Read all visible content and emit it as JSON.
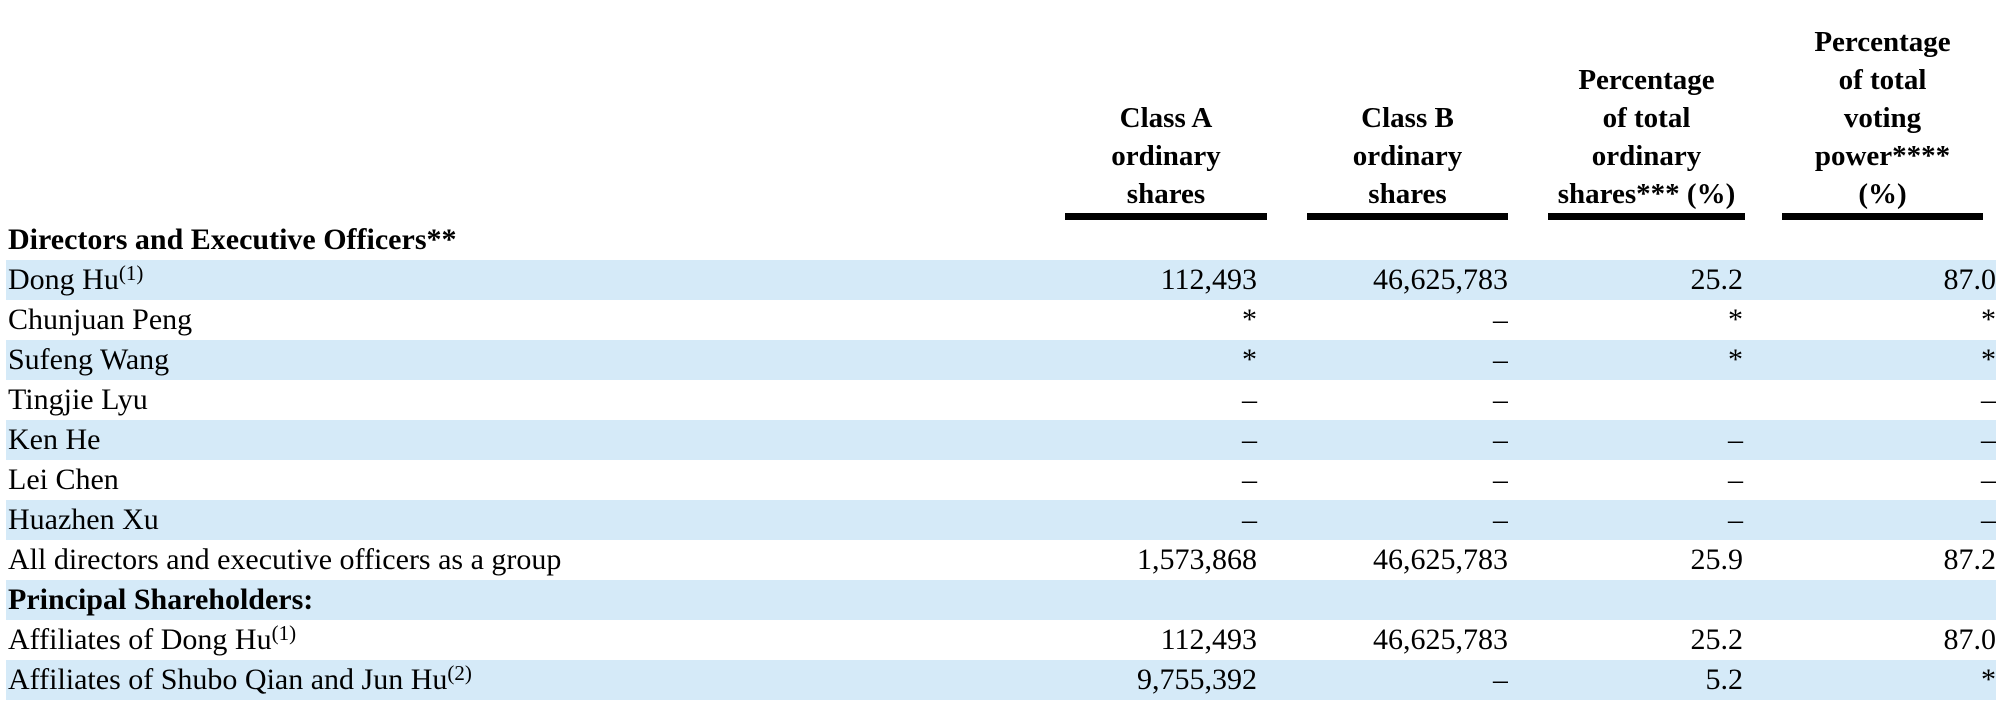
{
  "table": {
    "highlight_color": "#d5eaf8",
    "rule_color": "#000000",
    "header": {
      "name_column_label": "",
      "columns": [
        {
          "lines": [
            "Class A",
            "ordinary",
            "shares"
          ]
        },
        {
          "lines": [
            "Class B",
            "ordinary",
            "shares"
          ]
        },
        {
          "lines": [
            "Percentage",
            "of total",
            "ordinary",
            "shares*** (%)"
          ]
        },
        {
          "lines": [
            "Percentage",
            "of total",
            "voting",
            "power****",
            "(%)"
          ]
        }
      ]
    },
    "rows": [
      {
        "type": "section",
        "label": "Directors and Executive Officers**",
        "footnote": "",
        "values": [
          "",
          "",
          "",
          ""
        ],
        "highlight": false
      },
      {
        "type": "data",
        "label": "Dong Hu",
        "footnote": "(1)",
        "values": [
          "112,493",
          "46,625,783",
          "25.2",
          "87.0"
        ],
        "highlight": true
      },
      {
        "type": "data",
        "label": "Chunjuan Peng",
        "footnote": "",
        "values": [
          "*",
          "–",
          "*",
          "*"
        ],
        "highlight": false
      },
      {
        "type": "data",
        "label": "Sufeng Wang",
        "footnote": "",
        "values": [
          "*",
          "–",
          "*",
          "*"
        ],
        "highlight": true
      },
      {
        "type": "data",
        "label": "Tingjie Lyu",
        "footnote": "",
        "values": [
          "–",
          "–",
          "",
          "–"
        ],
        "highlight": false
      },
      {
        "type": "data",
        "label": "Ken He",
        "footnote": "",
        "values": [
          "–",
          "–",
          "–",
          "–"
        ],
        "highlight": true
      },
      {
        "type": "data",
        "label": "Lei Chen",
        "footnote": "",
        "values": [
          "–",
          "–",
          "–",
          "–"
        ],
        "highlight": false
      },
      {
        "type": "data",
        "label": "Huazhen Xu",
        "footnote": "",
        "values": [
          "–",
          "–",
          "–",
          "–"
        ],
        "highlight": true
      },
      {
        "type": "data",
        "label": "All directors and executive officers as a group",
        "footnote": "",
        "values": [
          "1,573,868",
          "46,625,783",
          "25.9",
          "87.2"
        ],
        "highlight": false
      },
      {
        "type": "section",
        "label": "Principal Shareholders:",
        "footnote": "",
        "values": [
          "",
          "",
          "",
          ""
        ],
        "highlight": true
      },
      {
        "type": "data",
        "label": "Affiliates of Dong Hu",
        "footnote": "(1)",
        "values": [
          "112,493",
          "46,625,783",
          "25.2",
          "87.0"
        ],
        "highlight": false
      },
      {
        "type": "data",
        "label": "Affiliates of Shubo Qian and Jun Hu",
        "footnote": "(2)",
        "values": [
          "9,755,392",
          "–",
          "5.2",
          "*"
        ],
        "highlight": true
      }
    ]
  }
}
